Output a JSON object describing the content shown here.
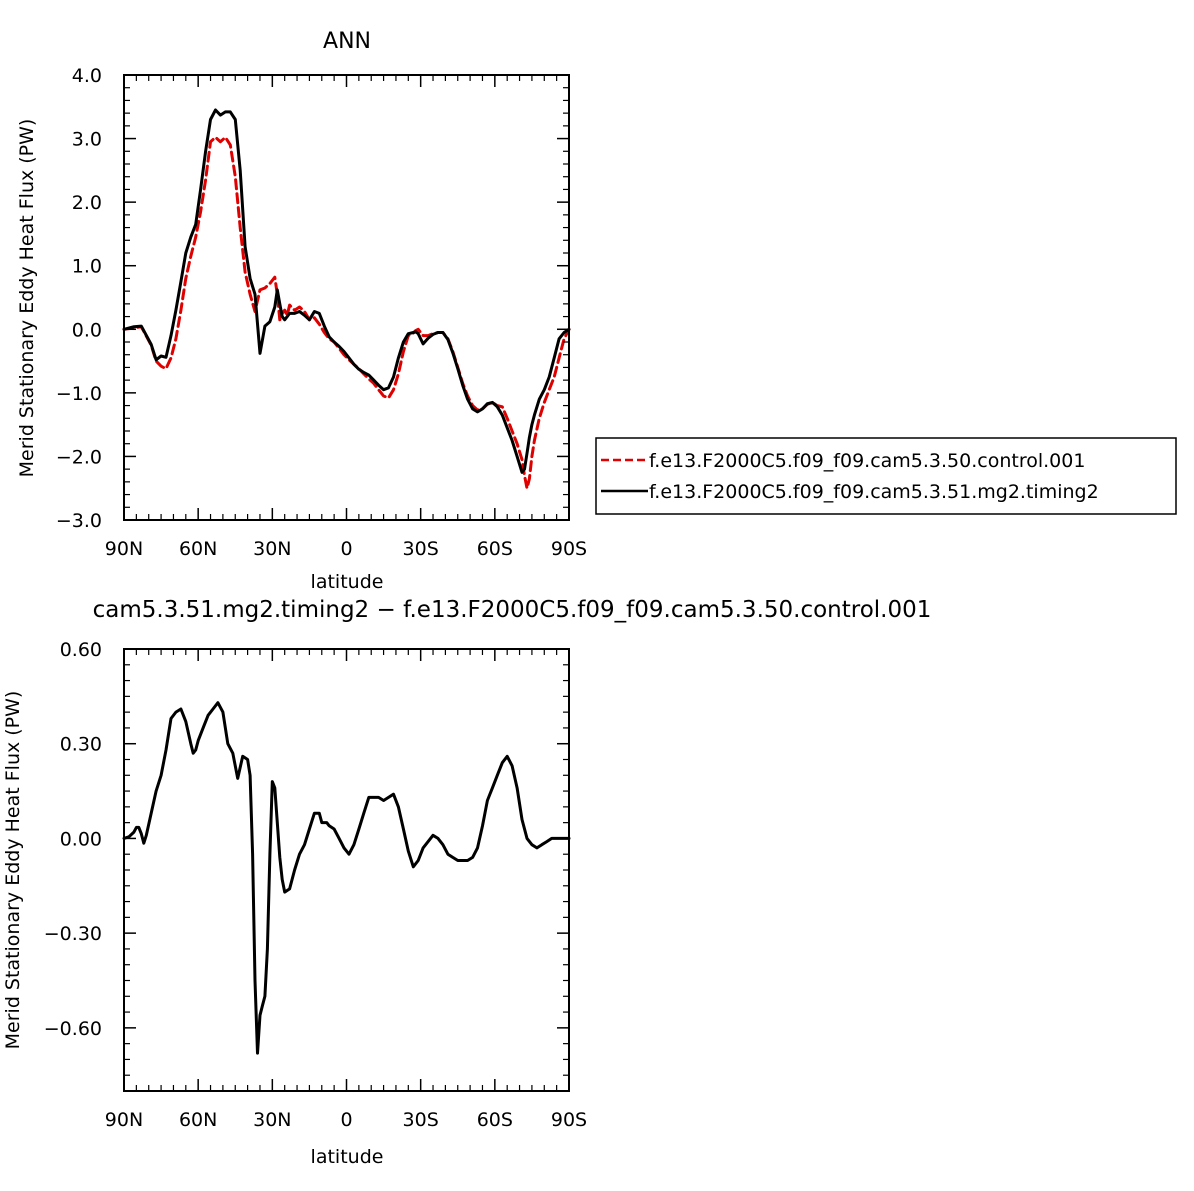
{
  "chart_data": [
    {
      "type": "line",
      "title": "ANN",
      "xlabel": "latitude",
      "ylabel": "Merid Stationary Eddy Heat Flux (PW)",
      "xlim": [
        90,
        -90
      ],
      "ylim": [
        -3.0,
        4.0
      ],
      "xticks": [
        90,
        60,
        30,
        0,
        -30,
        -60,
        -90
      ],
      "xtick_labels": [
        "90N",
        "60N",
        "30N",
        "0",
        "30S",
        "60S",
        "90S"
      ],
      "yticks": [
        -3.0,
        -2.0,
        -1.0,
        0.0,
        1.0,
        2.0,
        3.0,
        4.0
      ],
      "ytick_labels": [
        "−3.0",
        "−2.0",
        "−1.0",
        "0.0",
        "1.0",
        "2.0",
        "3.0",
        "4.0"
      ],
      "grid": false,
      "legend_position": "right",
      "series": [
        {
          "name": "f.e13.F2000C5.f09_f09.cam5.3.50.control.001",
          "color": "#e00000",
          "dash": true,
          "x": [
            90,
            86,
            83,
            79,
            77,
            75,
            73,
            71,
            69,
            67,
            65,
            63,
            61,
            59,
            57,
            55,
            53,
            51,
            49,
            47,
            45,
            43,
            41,
            39,
            37,
            35,
            33,
            31,
            29,
            28,
            27,
            26,
            25,
            24,
            23,
            21,
            19,
            17,
            15,
            13,
            11,
            9,
            7,
            5,
            3,
            1,
            -1,
            -3,
            -5,
            -7,
            -9,
            -11,
            -13,
            -15,
            -17,
            -19,
            -21,
            -23,
            -25,
            -27,
            -28,
            -29,
            -31,
            -33,
            -35,
            -37,
            -39,
            -41,
            -43,
            -45,
            -47,
            -49,
            -51,
            -53,
            -55,
            -57,
            -59,
            -61,
            -63,
            -65,
            -67,
            -69,
            -71,
            -72,
            -73,
            -74,
            -75,
            -76,
            -78,
            -80,
            -82,
            -84,
            -86,
            -88,
            -90
          ],
          "y": [
            0.0,
            0.02,
            0.04,
            -0.25,
            -0.5,
            -0.58,
            -0.62,
            -0.45,
            -0.15,
            0.3,
            0.8,
            1.15,
            1.45,
            1.85,
            2.35,
            2.95,
            3.02,
            2.95,
            3.02,
            2.9,
            2.4,
            1.6,
            0.9,
            0.55,
            0.28,
            0.62,
            0.65,
            0.72,
            0.82,
            0.55,
            0.15,
            0.25,
            0.3,
            0.22,
            0.38,
            0.3,
            0.35,
            0.28,
            0.15,
            0.18,
            0.08,
            -0.05,
            -0.15,
            -0.2,
            -0.3,
            -0.4,
            -0.48,
            -0.55,
            -0.62,
            -0.7,
            -0.78,
            -0.85,
            -0.95,
            -1.05,
            -1.08,
            -0.95,
            -0.7,
            -0.35,
            -0.1,
            -0.06,
            -0.02,
            0.0,
            -0.1,
            -0.1,
            -0.07,
            -0.05,
            -0.05,
            -0.15,
            -0.35,
            -0.6,
            -0.85,
            -1.05,
            -1.2,
            -1.27,
            -1.25,
            -1.18,
            -1.15,
            -1.2,
            -1.22,
            -1.4,
            -1.6,
            -1.8,
            -2.05,
            -2.3,
            -2.5,
            -2.35,
            -2.0,
            -1.75,
            -1.4,
            -1.15,
            -0.95,
            -0.75,
            -0.45,
            -0.15,
            0.0
          ]
        },
        {
          "name": "f.e13.F2000C5.f09_f09.cam5.3.51.mg2.timing2",
          "color": "#000000",
          "dash": false,
          "x": [
            90,
            86,
            83,
            79,
            77,
            75,
            73,
            71,
            69,
            67,
            65,
            63,
            61,
            59,
            57,
            55,
            53,
            51,
            49,
            47,
            45,
            43,
            41,
            39,
            37,
            35,
            33,
            31,
            29,
            28,
            27,
            26,
            25,
            24,
            23,
            21,
            19,
            17,
            15,
            13,
            11,
            9,
            7,
            5,
            3,
            1,
            -1,
            -3,
            -5,
            -7,
            -9,
            -11,
            -13,
            -15,
            -17,
            -19,
            -21,
            -23,
            -25,
            -27,
            -28,
            -29,
            -31,
            -33,
            -35,
            -37,
            -39,
            -41,
            -43,
            -45,
            -47,
            -49,
            -51,
            -53,
            -55,
            -57,
            -59,
            -61,
            -63,
            -65,
            -67,
            -69,
            -71,
            -72,
            -73,
            -74,
            -75,
            -76,
            -78,
            -80,
            -82,
            -84,
            -86,
            -88,
            -90
          ],
          "y": [
            0.0,
            0.04,
            0.05,
            -0.24,
            -0.48,
            -0.42,
            -0.44,
            -0.1,
            0.3,
            0.75,
            1.2,
            1.45,
            1.65,
            2.2,
            2.8,
            3.3,
            3.45,
            3.37,
            3.42,
            3.42,
            3.3,
            2.5,
            1.3,
            0.8,
            0.55,
            -0.38,
            0.05,
            0.12,
            0.35,
            0.62,
            0.4,
            0.2,
            0.15,
            0.2,
            0.25,
            0.25,
            0.28,
            0.22,
            0.15,
            0.28,
            0.25,
            0.05,
            -0.12,
            -0.2,
            -0.27,
            -0.35,
            -0.45,
            -0.55,
            -0.63,
            -0.68,
            -0.72,
            -0.8,
            -0.88,
            -0.95,
            -0.92,
            -0.75,
            -0.45,
            -0.2,
            -0.07,
            -0.05,
            -0.04,
            -0.07,
            -0.23,
            -0.14,
            -0.08,
            -0.05,
            -0.05,
            -0.16,
            -0.37,
            -0.62,
            -0.88,
            -1.1,
            -1.25,
            -1.3,
            -1.25,
            -1.17,
            -1.15,
            -1.22,
            -1.35,
            -1.55,
            -1.75,
            -2.0,
            -2.25,
            -2.2,
            -1.95,
            -1.7,
            -1.5,
            -1.35,
            -1.1,
            -0.95,
            -0.75,
            -0.45,
            -0.15,
            -0.05,
            0.0
          ]
        }
      ]
    },
    {
      "type": "line",
      "title": "cam5.3.51.mg2.timing2 − f.e13.F2000C5.f09_f09.cam5.3.50.control.001",
      "xlabel": "latitude",
      "ylabel": "Merid Stationary Eddy Heat Flux (PW)",
      "xlim": [
        90,
        -90
      ],
      "ylim": [
        -0.8,
        0.6
      ],
      "xticks": [
        90,
        60,
        30,
        0,
        -30,
        -60,
        -90
      ],
      "xtick_labels": [
        "90N",
        "60N",
        "30N",
        "0",
        "30S",
        "60S",
        "90S"
      ],
      "yticks": [
        -0.6,
        -0.3,
        0.0,
        0.3,
        0.6
      ],
      "ytick_labels": [
        "−0.60",
        "−0.30",
        "0.00",
        "0.30",
        "0.60"
      ],
      "grid": false,
      "series": [
        {
          "color": "#000000",
          "dash": false,
          "x": [
            90,
            88,
            86,
            85,
            84,
            83,
            82,
            81,
            79,
            77,
            75,
            73,
            71,
            69,
            67,
            65,
            63,
            62,
            61,
            60,
            58,
            56,
            54,
            52,
            50,
            48,
            46,
            44,
            42,
            40,
            39,
            38,
            37,
            36,
            35,
            34,
            33,
            32,
            31,
            30,
            29,
            28,
            27,
            26,
            25,
            23,
            21,
            19,
            17,
            15,
            13,
            11,
            10,
            9,
            8,
            7,
            5,
            3,
            1,
            -1,
            -3,
            -5,
            -7,
            -9,
            -11,
            -13,
            -15,
            -17,
            -19,
            -21,
            -23,
            -25,
            -27,
            -29,
            -31,
            -33,
            -35,
            -37,
            -39,
            -41,
            -43,
            -45,
            -47,
            -49,
            -51,
            -53,
            -55,
            -57,
            -59,
            -61,
            -63,
            -65,
            -67,
            -69,
            -71,
            -73,
            -75,
            -77,
            -79,
            -81,
            -83,
            -85,
            -87,
            -88,
            -90
          ],
          "y": [
            0.0,
            0.005,
            0.02,
            0.035,
            0.035,
            0.015,
            -0.015,
            0.01,
            0.08,
            0.15,
            0.2,
            0.28,
            0.38,
            0.4,
            0.41,
            0.37,
            0.3,
            0.27,
            0.28,
            0.31,
            0.35,
            0.39,
            0.41,
            0.43,
            0.4,
            0.3,
            0.27,
            0.19,
            0.26,
            0.25,
            0.2,
            -0.05,
            -0.45,
            -0.68,
            -0.56,
            -0.53,
            -0.5,
            -0.35,
            -0.05,
            0.18,
            0.16,
            0.05,
            -0.06,
            -0.13,
            -0.17,
            -0.16,
            -0.1,
            -0.05,
            -0.02,
            0.03,
            0.08,
            0.08,
            0.05,
            0.05,
            0.05,
            0.04,
            0.03,
            0.0,
            -0.03,
            -0.05,
            -0.02,
            0.03,
            0.08,
            0.13,
            0.13,
            0.13,
            0.12,
            0.13,
            0.14,
            0.1,
            0.03,
            -0.04,
            -0.09,
            -0.07,
            -0.03,
            -0.01,
            0.01,
            0.0,
            -0.02,
            -0.05,
            -0.06,
            -0.07,
            -0.07,
            -0.07,
            -0.06,
            -0.03,
            0.04,
            0.12,
            0.16,
            0.2,
            0.24,
            0.26,
            0.23,
            0.16,
            0.06,
            0.0,
            -0.02,
            -0.03,
            -0.02,
            -0.01,
            0.0,
            0.0,
            0.0,
            0.0,
            0.0
          ]
        }
      ]
    }
  ]
}
